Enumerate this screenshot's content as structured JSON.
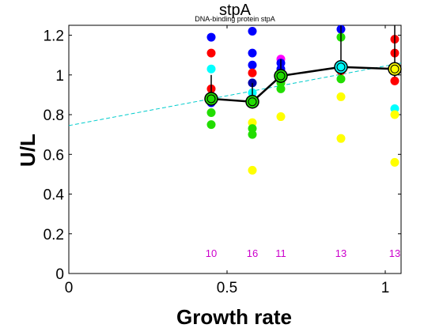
{
  "chart_data": {
    "type": "scatter",
    "title": "stpA",
    "subtitle": "DNA-binding protein stpA",
    "xlabel": "Growth rate",
    "ylabel": "U/L",
    "xlim": [
      0,
      1.05
    ],
    "ylim": [
      0,
      1.25
    ],
    "xticks": [
      "0",
      "0.5",
      "1"
    ],
    "xtick_values": [
      0,
      0.5,
      1
    ],
    "yticks": [
      "0",
      "0.2",
      "0.4",
      "0.6",
      "0.8",
      "1",
      "1.2"
    ],
    "ytick_values": [
      0,
      0.2,
      0.4,
      0.6,
      0.8,
      1,
      1.2
    ],
    "grid": false,
    "colors": {
      "blue": "#0000ff",
      "red": "#ff0000",
      "green": "#22dd00",
      "yellow": "#ffff00",
      "cyan": "#00ffff",
      "magenta": "#ff00ff",
      "navy": "#0000aa",
      "mean_line": "#000000",
      "fit_line": "#00cccc",
      "count_text": "#cc00cc"
    },
    "points": [
      {
        "x": 0.45,
        "y": 1.19,
        "color": "blue"
      },
      {
        "x": 0.45,
        "y": 1.11,
        "color": "red"
      },
      {
        "x": 0.45,
        "y": 1.03,
        "color": "cyan"
      },
      {
        "x": 0.45,
        "y": 0.93,
        "color": "red"
      },
      {
        "x": 0.45,
        "y": 0.89,
        "color": "navy"
      },
      {
        "x": 0.45,
        "y": 0.86,
        "color": "blue"
      },
      {
        "x": 0.45,
        "y": 0.81,
        "color": "green"
      },
      {
        "x": 0.45,
        "y": 0.75,
        "color": "green"
      },
      {
        "x": 0.58,
        "y": 1.22,
        "color": "blue"
      },
      {
        "x": 0.58,
        "y": 1.11,
        "color": "blue"
      },
      {
        "x": 0.58,
        "y": 1.05,
        "color": "blue"
      },
      {
        "x": 0.58,
        "y": 1.01,
        "color": "red"
      },
      {
        "x": 0.58,
        "y": 0.96,
        "color": "navy"
      },
      {
        "x": 0.58,
        "y": 0.91,
        "color": "cyan"
      },
      {
        "x": 0.58,
        "y": 0.87,
        "color": "green"
      },
      {
        "x": 0.58,
        "y": 0.76,
        "color": "yellow"
      },
      {
        "x": 0.58,
        "y": 0.73,
        "color": "green"
      },
      {
        "x": 0.58,
        "y": 0.7,
        "color": "green"
      },
      {
        "x": 0.58,
        "y": 0.52,
        "color": "yellow"
      },
      {
        "x": 0.67,
        "y": 1.08,
        "color": "magenta"
      },
      {
        "x": 0.67,
        "y": 1.06,
        "color": "blue"
      },
      {
        "x": 0.67,
        "y": 1.03,
        "color": "blue"
      },
      {
        "x": 0.67,
        "y": 0.98,
        "color": "red"
      },
      {
        "x": 0.67,
        "y": 0.96,
        "color": "green"
      },
      {
        "x": 0.67,
        "y": 0.93,
        "color": "green"
      },
      {
        "x": 0.67,
        "y": 0.79,
        "color": "yellow"
      },
      {
        "x": 0.86,
        "y": 1.23,
        "color": "blue"
      },
      {
        "x": 0.86,
        "y": 1.19,
        "color": "green"
      },
      {
        "x": 0.86,
        "y": 1.05,
        "color": "blue"
      },
      {
        "x": 0.86,
        "y": 1.02,
        "color": "red"
      },
      {
        "x": 0.86,
        "y": 0.98,
        "color": "green"
      },
      {
        "x": 0.86,
        "y": 0.89,
        "color": "yellow"
      },
      {
        "x": 0.86,
        "y": 0.68,
        "color": "yellow"
      },
      {
        "x": 1.03,
        "y": 1.18,
        "color": "red"
      },
      {
        "x": 1.03,
        "y": 1.11,
        "color": "red"
      },
      {
        "x": 1.03,
        "y": 1.03,
        "color": "yellow"
      },
      {
        "x": 1.03,
        "y": 0.97,
        "color": "red"
      },
      {
        "x": 1.03,
        "y": 0.83,
        "color": "cyan"
      },
      {
        "x": 1.03,
        "y": 0.8,
        "color": "yellow"
      },
      {
        "x": 1.03,
        "y": 0.56,
        "color": "yellow"
      }
    ],
    "means": {
      "x": [
        0.45,
        0.58,
        0.67,
        0.86,
        1.03
      ],
      "y": [
        0.88,
        0.865,
        0.995,
        1.04,
        1.03
      ],
      "err_low": [
        0.85,
        0.83,
        0.96,
        1.0,
        0.99
      ],
      "err_high": [
        1.0,
        0.96,
        1.08,
        1.25,
        1.25
      ],
      "marker_colors": [
        "green",
        "green",
        "green",
        "cyan",
        "yellow"
      ]
    },
    "fit_line": {
      "x": [
        0,
        1.05
      ],
      "y": [
        0.745,
        1.06
      ]
    },
    "counts": [
      {
        "x": 0.45,
        "label": "10"
      },
      {
        "x": 0.58,
        "label": "16"
      },
      {
        "x": 0.67,
        "label": "11"
      },
      {
        "x": 0.86,
        "label": "13"
      },
      {
        "x": 1.03,
        "label": "13"
      }
    ],
    "count_y": 0.1
  }
}
